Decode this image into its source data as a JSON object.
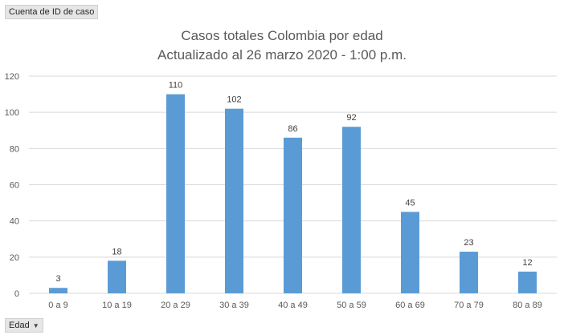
{
  "value_field_button": {
    "label": "Cuenta de ID de caso"
  },
  "axis_field_button": {
    "label": "Edad",
    "icon": "dropdown-arrow-icon"
  },
  "chart_data": {
    "type": "bar",
    "title": "Casos totales Colombia por edad",
    "subtitle": "Actualizado al 26 marzo 2020 - 1:00 p.m.",
    "categories": [
      "0 a 9",
      "10 a 19",
      "20 a 29",
      "30 a 39",
      "40 a 49",
      "50 a 59",
      "60 a 69",
      "70 a 79",
      "80 a 89"
    ],
    "values": [
      3,
      18,
      110,
      102,
      86,
      92,
      45,
      23,
      12
    ],
    "ylim": [
      0,
      120
    ],
    "yticks": [
      0,
      20,
      40,
      60,
      80,
      100,
      120
    ],
    "grid": true,
    "data_labels": true,
    "bar_color": "#5b9bd5"
  }
}
